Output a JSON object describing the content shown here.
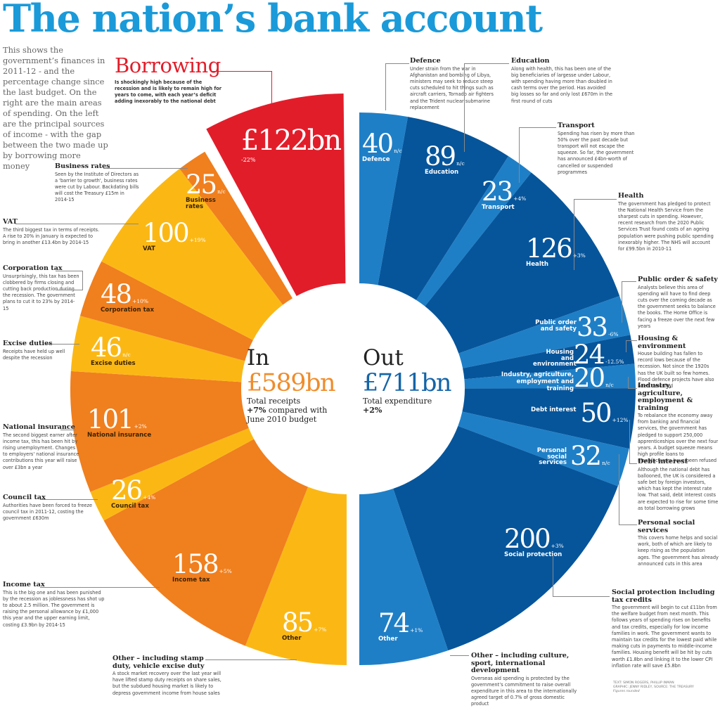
{
  "header": {
    "title": "The nation’s bank account",
    "intro": "This shows the government’s finances in 2011-12 - and the percentage change since the last budget. On the right are the main areas of spending. On the left are the principal sources of income - with the gap between the two made up by borrowing more money"
  },
  "borrowing": {
    "heading": "Borrowing",
    "description": "Is shockingly high because of the recession and is likely to remain high for years to come, with each year’s deficit adding inexorably to the national debt",
    "amount": "£122bn",
    "change": "-22%"
  },
  "center": {
    "in_word": "In",
    "in_amount": "£589bn",
    "in_sub1": "Total receipts",
    "in_sub2_bold": "+7%",
    "in_sub2": " compared with",
    "in_sub3": "June 2010 budget",
    "out_word": "Out",
    "out_amount": "£711bn",
    "out_sub1": "Total expenditure",
    "out_sub2": "+2%"
  },
  "colors": {
    "title": "#1a9ad9",
    "borrowing": "#e21d2a",
    "income_orange": "#f07f1e",
    "income_yellow": "#fbb815",
    "spend_dark": "#06559b",
    "spend_light": "#1f7fc6",
    "in_amount": "#f08c2b",
    "out_amount": "#1565a8"
  },
  "notes": {
    "defence": {
      "title": "Defence",
      "text": "Under strain from the war in Afghanistan and bombing of Libya, ministers may seek to reduce steep cuts scheduled to hit things such as aircraft carriers, Tornado air fighters and the Trident nuclear submarine replacement"
    },
    "education": {
      "title": "Education",
      "text": "Along with health, this has been one of the big beneficiaries of largesse under Labour, with spending having more than doubled in cash terms over the period. Has avoided big losses so far and only lost £670m in the first round of cuts"
    },
    "transport": {
      "title": "Transport",
      "text": "Spending has risen by more than 50% over the past decade but transport will not escape the squeeze. So far, the government has announced £4bn-worth of  cancelled or suspended programmes"
    },
    "health": {
      "title": "Health",
      "text": "The government has pledged to protect the National Health Service from the sharpest cuts in spending. However, recent research from the 2020 Public Services Trust found costs of an ageing population were pushing public spending inexorably higher. The NHS will account for £99.5bn in 2010-11"
    },
    "public_order": {
      "title": "Public order & safety",
      "text": "Analysts believe this area of spending will have to find deep cuts over the coming decade as the government seeks to balance the books. The Home Office is facing a freeze over the next few years"
    },
    "housing": {
      "title": "Housing & environment",
      "text": "House building has fallen to record lows because of the recession. Not since the 1920s has the UK built so few homes. Flood defence projects have also been cancelled"
    },
    "industry": {
      "title": "Industry, agriculture, employment & training",
      "text": "To rebalance the economy away from banking and financial services, the government has pledged to support 250,000 apprenticeships over the next four years. A budget squeeze means high profile loans to manufacturers have been refused"
    },
    "debt": {
      "title": "Debt interest",
      "text": "Although the national debt has ballooned, the UK is considered a safe bet by foreign investors, which has kept the interest rate low. That said, debt interest costs are expected to rise for some time as total borrowing grows"
    },
    "personal": {
      "title": "Personal social services",
      "text": "This covers home helps and social work, both of which are likely to keep rising as the population ages. The government has already announced cuts in this area"
    },
    "social": {
      "title": "Social protection including tax credits",
      "text": "The government will begin to cut £11bn from the welfare budget from next month. This follows years of spending rises on benefits and tax credits, especially for low income families in work. The government wants to maintain tax credits for the lowest paid while making cuts in payments to middle-income families. Housing benefit will be hit by cuts worth £1.8bn and linking it to the lower CPI inflation rate will save £5.8bn"
    },
    "other_out": {
      "title": "Other – including culture, sport, international development",
      "text": "Overseas aid spending is protected by the government’s commitment to raise overall expenditure in this area to the internationally agreed target of 0.7% of gross domestic product"
    },
    "business_rates": {
      "title": "Business rates",
      "text": "Seen by the Institute of Directors as a 'barrier to growth', business rates were cut by Labour. Backdating bills will cost the Treasury £15m in 2014-15"
    },
    "vat": {
      "title": "VAT",
      "text": "The third biggest tax in terms of receipts. A rise to 20% in January is expected to bring in another £13.4bn by 2014-15"
    },
    "corporation": {
      "title": "Corporation tax",
      "text": "Unsurprisingly, this tax has been clobbered by firms closing and cutting back production during the recession. The government plans to cut it to 23% by 2014-15"
    },
    "excise": {
      "title": "Excise duties",
      "text": "Receipts have held up well despite the recession"
    },
    "ni": {
      "title": "National insurance",
      "text": "The second biggest earner after income tax, this has been hit by rising unemployment. Changes to employers' national insurance contributions this year will raise over £3bn a year"
    },
    "council": {
      "title": "Council tax",
      "text": "Authorities have been forced to freeze council tax in 2011-12, costing the government £630m"
    },
    "income": {
      "title": "Income tax",
      "text": "This is the big one and has been punished by the recession as joblessness has shot up to about 2.5 million. The government is raising the personal allowance by £1,000 this year and the upper earning limit, costing £3.9bn by 2014-15"
    },
    "other_in": {
      "title": "Other – including stamp duty, vehicle excise duty",
      "text": "A stock market recovery over the last year will have lifted stamp duty receipts on share sales, but the subdued housing market is likely to depress government income from house sales"
    }
  },
  "credit": {
    "line1": "TEXT: SIMON ROGERS, PHILLIP INMAN",
    "line2": "GRAPHIC: JENNY RIDLEY, SOURCE: THE TREASURY",
    "line3": "Figures rounded"
  },
  "chart_data": {
    "type": "pie",
    "title": "The nation’s bank account",
    "subtitle": "Government finances 2011-12 (£bn) and % change since last budget",
    "units": "£bn",
    "series": [
      {
        "name": "Out (Total expenditure £711bn, +2%)",
        "categories": [
          "Defence",
          "Education",
          "Transport",
          "Health",
          "Public order and safety",
          "Housing and environment",
          "Industry, agriculture, employment and training",
          "Debt interest",
          "Personal social services",
          "Social protection",
          "Other"
        ],
        "values": [
          40,
          89,
          23,
          126,
          33,
          24,
          20,
          50,
          32,
          200,
          74
        ],
        "changes": [
          "n/c",
          "n/c",
          "+4%",
          "+3%",
          "-6%",
          "-12.5%",
          "n/c",
          "+12%",
          "n/c",
          "+3%",
          "+1%"
        ],
        "total": 711
      },
      {
        "name": "In (Total receipts £589bn, +7%) plus Borrowing",
        "categories": [
          "Other",
          "Income tax",
          "Council tax",
          "National insurance",
          "Excise duties",
          "Corporation tax",
          "VAT",
          "Business rates",
          "Borrowing"
        ],
        "values": [
          85,
          158,
          26,
          101,
          46,
          48,
          100,
          25,
          122
        ],
        "changes": [
          "+7%",
          "+5%",
          "+4%",
          "+2%",
          "n/c",
          "+10%",
          "+19%",
          "n/c",
          "-22%"
        ],
        "total_receipts": 589,
        "total_with_borrowing": 711
      }
    ]
  }
}
